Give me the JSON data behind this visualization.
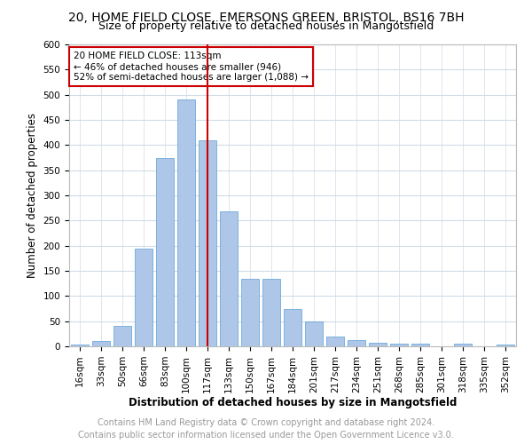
{
  "title1": "20, HOME FIELD CLOSE, EMERSONS GREEN, BRISTOL, BS16 7BH",
  "title2": "Size of property relative to detached houses in Mangotsfield",
  "xlabel": "Distribution of detached houses by size in Mangotsfield",
  "ylabel": "Number of detached properties",
  "categories": [
    "16sqm",
    "33sqm",
    "50sqm",
    "66sqm",
    "83sqm",
    "100sqm",
    "117sqm",
    "133sqm",
    "150sqm",
    "167sqm",
    "184sqm",
    "201sqm",
    "217sqm",
    "234sqm",
    "251sqm",
    "268sqm",
    "285sqm",
    "301sqm",
    "318sqm",
    "335sqm",
    "352sqm"
  ],
  "values": [
    3,
    10,
    40,
    195,
    375,
    490,
    410,
    268,
    135,
    135,
    75,
    50,
    20,
    12,
    7,
    5,
    5,
    0,
    5,
    0,
    3
  ],
  "bar_color": "#aec6e8",
  "bar_edge_color": "#5a9fd4",
  "vline_x": 6,
  "vline_color": "#cc0000",
  "annotation_text": "20 HOME FIELD CLOSE: 113sqm\n← 46% of detached houses are smaller (946)\n52% of semi-detached houses are larger (1,088) →",
  "annotation_box_color": "#ffffff",
  "annotation_box_edge": "#cc0000",
  "ylim": [
    0,
    600
  ],
  "yticks": [
    0,
    50,
    100,
    150,
    200,
    250,
    300,
    350,
    400,
    450,
    500,
    550,
    600
  ],
  "footer1": "Contains HM Land Registry data © Crown copyright and database right 2024.",
  "footer2": "Contains public sector information licensed under the Open Government Licence v3.0.",
  "bg_color": "#ffffff",
  "grid_color": "#d0dce8",
  "title1_fontsize": 10,
  "title2_fontsize": 9,
  "axis_label_fontsize": 8.5,
  "tick_fontsize": 7.5,
  "annotation_fontsize": 7.5,
  "footer_fontsize": 7
}
